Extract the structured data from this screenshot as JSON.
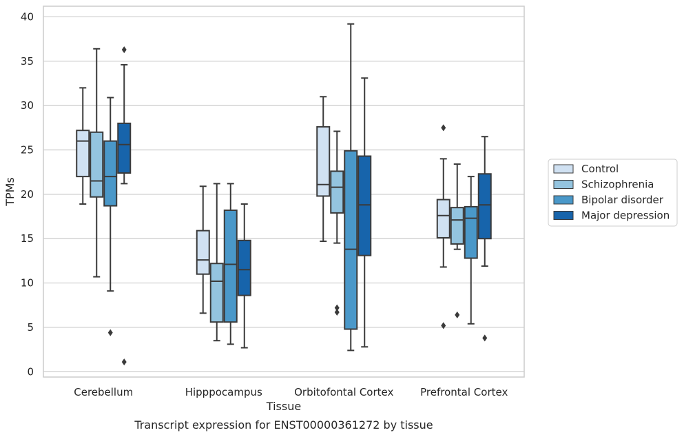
{
  "chart_data": {
    "type": "box",
    "caption": "Transcript expression for ENST00000361272 by tissue",
    "xlabel": "Tissue",
    "ylabel": "TPMs",
    "ylim": [
      -0.6,
      41.2
    ],
    "yticks": [
      0,
      5,
      10,
      15,
      20,
      25,
      30,
      35,
      40
    ],
    "grid": "horizontal",
    "legend_position": "right",
    "categories": [
      "Cerebellum",
      "Hipppocampus",
      "Orbitofontal Cortex",
      "Prefrontal Cortex"
    ],
    "series": [
      {
        "name": "Control",
        "color": "#d0e1f2",
        "boxes": [
          {
            "whislo": 18.9,
            "q1": 22.0,
            "med": 26.0,
            "q3": 27.2,
            "whishi": 32.0,
            "fliers": []
          },
          {
            "whislo": 6.6,
            "q1": 11.0,
            "med": 12.6,
            "q3": 15.9,
            "whishi": 20.9,
            "fliers": []
          },
          {
            "whislo": 14.7,
            "q1": 19.8,
            "med": 21.1,
            "q3": 27.6,
            "whishi": 31.0,
            "fliers": []
          },
          {
            "whislo": 11.8,
            "q1": 15.1,
            "med": 17.6,
            "q3": 19.4,
            "whishi": 24.0,
            "fliers": [
              27.5,
              5.2
            ]
          }
        ]
      },
      {
        "name": "Schizophrenia",
        "color": "#94c4df",
        "boxes": [
          {
            "whislo": 10.7,
            "q1": 19.7,
            "med": 21.5,
            "q3": 27.0,
            "whishi": 36.4,
            "fliers": []
          },
          {
            "whislo": 3.5,
            "q1": 5.6,
            "med": 10.2,
            "q3": 12.2,
            "whishi": 21.2,
            "fliers": []
          },
          {
            "whislo": 14.5,
            "q1": 17.9,
            "med": 20.8,
            "q3": 22.6,
            "whishi": 27.1,
            "fliers": [
              7.2,
              6.7
            ]
          },
          {
            "whislo": 13.8,
            "q1": 14.4,
            "med": 17.1,
            "q3": 18.5,
            "whishi": 23.4,
            "fliers": [
              6.4
            ]
          }
        ]
      },
      {
        "name": "Bipolar disorder",
        "color": "#4a98c9",
        "boxes": [
          {
            "whislo": 9.1,
            "q1": 18.7,
            "med": 22.0,
            "q3": 26.0,
            "whishi": 30.9,
            "fliers": [
              4.4
            ]
          },
          {
            "whislo": 3.1,
            "q1": 5.6,
            "med": 12.1,
            "q3": 18.2,
            "whishi": 21.2,
            "fliers": []
          },
          {
            "whislo": 2.4,
            "q1": 4.8,
            "med": 13.8,
            "q3": 24.9,
            "whishi": 39.2,
            "fliers": []
          },
          {
            "whislo": 5.4,
            "q1": 12.8,
            "med": 17.3,
            "q3": 18.6,
            "whishi": 22.0,
            "fliers": []
          }
        ]
      },
      {
        "name": "Major depression",
        "color": "#1764ab",
        "boxes": [
          {
            "whislo": 21.2,
            "q1": 22.4,
            "med": 25.6,
            "q3": 28.0,
            "whishi": 34.6,
            "fliers": [
              36.3,
              1.1
            ]
          },
          {
            "whislo": 2.7,
            "q1": 8.6,
            "med": 11.5,
            "q3": 14.8,
            "whishi": 18.9,
            "fliers": []
          },
          {
            "whislo": 2.8,
            "q1": 13.1,
            "med": 18.8,
            "q3": 24.3,
            "whishi": 33.1,
            "fliers": []
          },
          {
            "whislo": 11.9,
            "q1": 15.0,
            "med": 18.8,
            "q3": 22.3,
            "whishi": 26.5,
            "fliers": [
              3.8
            ]
          }
        ]
      }
    ]
  }
}
